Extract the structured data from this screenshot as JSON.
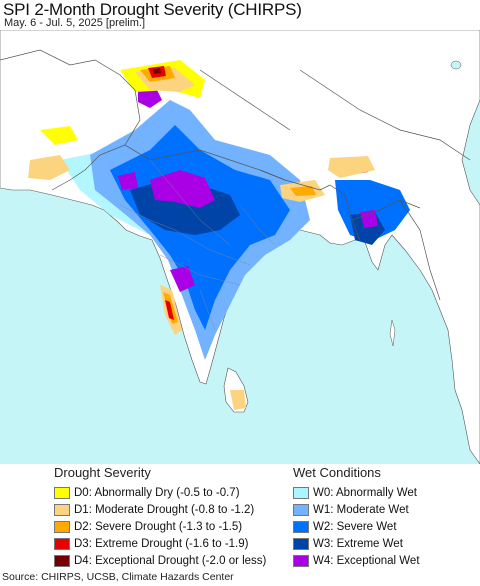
{
  "header": {
    "title": "SPI 2-Month Drought Severity (CHIRPS)",
    "subtitle": "May. 6 - Jul. 5, 2025 [prelim.]"
  },
  "map": {
    "region": "South Asia",
    "colors": {
      "ocean": "#c5f5f7",
      "land_neutral": "#ffffff",
      "border": "#555555"
    }
  },
  "legend": {
    "drought": {
      "heading": "Drought Severity",
      "items": [
        {
          "code": "D0",
          "label": "D0: Abnormally Dry (-0.5 to -0.7)",
          "color": "#ffff00"
        },
        {
          "code": "D1",
          "label": "D1: Moderate Drought (-0.8 to -1.2)",
          "color": "#fcd37f"
        },
        {
          "code": "D2",
          "label": "D2: Severe Drought (-1.3 to -1.5)",
          "color": "#ffaa00"
        },
        {
          "code": "D3",
          "label": "D3: Extreme Drought (-1.6 to -1.9)",
          "color": "#e60000"
        },
        {
          "code": "D4",
          "label": "D4: Exceptional Drought (-2.0 or less)",
          "color": "#730000"
        }
      ]
    },
    "wet": {
      "heading": "Wet Conditions",
      "items": [
        {
          "code": "W0",
          "label": "W0: Abnormally Wet",
          "color": "#aaf5ff"
        },
        {
          "code": "W1",
          "label": "W1: Moderate Wet",
          "color": "#73b2ff"
        },
        {
          "code": "W2",
          "label": "W2: Severe Wet",
          "color": "#0070ff"
        },
        {
          "code": "W3",
          "label": "W3: Extreme Wet",
          "color": "#0044a8"
        },
        {
          "code": "W4",
          "label": "W4: Exceptional Wet",
          "color": "#a900e6"
        }
      ]
    }
  },
  "footer": {
    "source": "Source: CHIRPS, UCSB, Climate Hazards Center"
  }
}
